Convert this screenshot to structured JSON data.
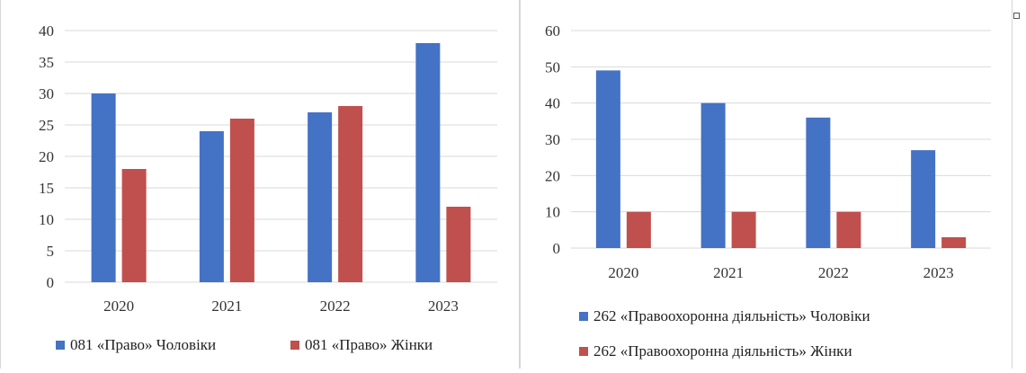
{
  "colors": {
    "men": "#4472c4",
    "women": "#c0504d",
    "grid": "#d9d9d9"
  },
  "chart_data": [
    {
      "type": "bar",
      "categories": [
        "2020",
        "2021",
        "2022",
        "2023"
      ],
      "series": [
        {
          "name": "081 «Право» Чоловіки",
          "values": [
            30,
            24,
            27,
            38
          ]
        },
        {
          "name": "081 «Право» Жінки",
          "values": [
            18,
            26,
            28,
            12
          ]
        }
      ],
      "ylim": [
        0,
        40
      ],
      "yticks": [
        "0",
        "5",
        "10",
        "15",
        "20",
        "25",
        "30",
        "35",
        "40"
      ],
      "grid": true,
      "legend_position": "bottom"
    },
    {
      "type": "bar",
      "categories": [
        "2020",
        "2021",
        "2022",
        "2023"
      ],
      "series": [
        {
          "name": "262 «Правоохоронна діяльність» Чоловіки",
          "values": [
            49,
            40,
            36,
            27
          ]
        },
        {
          "name": "262 «Правоохоронна діяльність» Жінки",
          "values": [
            10,
            10,
            10,
            3
          ]
        }
      ],
      "ylim": [
        0,
        60
      ],
      "yticks": [
        "0",
        "10",
        "20",
        "30",
        "40",
        "50",
        "60"
      ],
      "grid": true,
      "legend_position": "bottom"
    }
  ]
}
